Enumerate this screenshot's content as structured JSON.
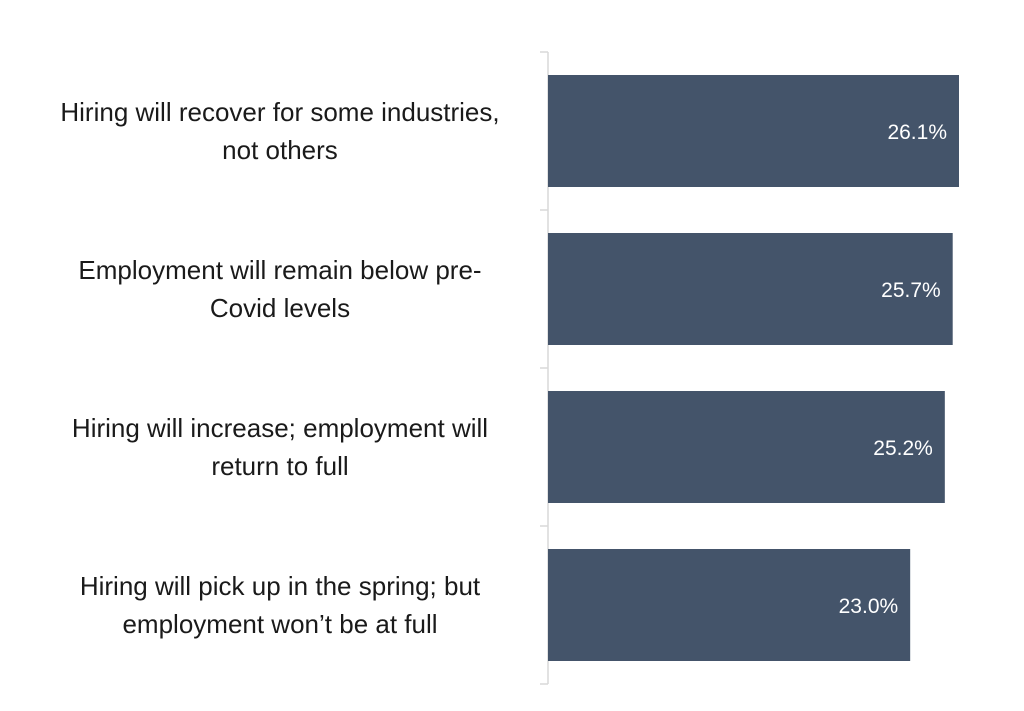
{
  "chart_data": {
    "type": "bar",
    "orientation": "horizontal",
    "categories": [
      "Hiring will recover for some industries, not others",
      "Employment will remain below pre-Covid levels",
      "Hiring will increase; employment will return to full",
      "Hiring will pick up in the spring; but employment won’t be at full"
    ],
    "category_lines": [
      [
        "Hiring will recover for some industries,",
        "not others"
      ],
      [
        "Employment will remain below pre-",
        "Covid levels"
      ],
      [
        "Hiring will increase; employment will",
        "return to full"
      ],
      [
        "Hiring will pick up in the spring; but",
        "employment won’t be at full"
      ]
    ],
    "values": [
      26.1,
      25.7,
      25.2,
      23.0
    ],
    "value_labels": [
      "26.1%",
      "25.7%",
      "25.2%",
      "23.0%"
    ],
    "title": "",
    "xlabel": "",
    "ylabel": "",
    "xlim": [
      0,
      26.1
    ],
    "grid": false,
    "legend": "none",
    "bar_color": "#44546a",
    "axis_color": "#d9d9d9"
  }
}
